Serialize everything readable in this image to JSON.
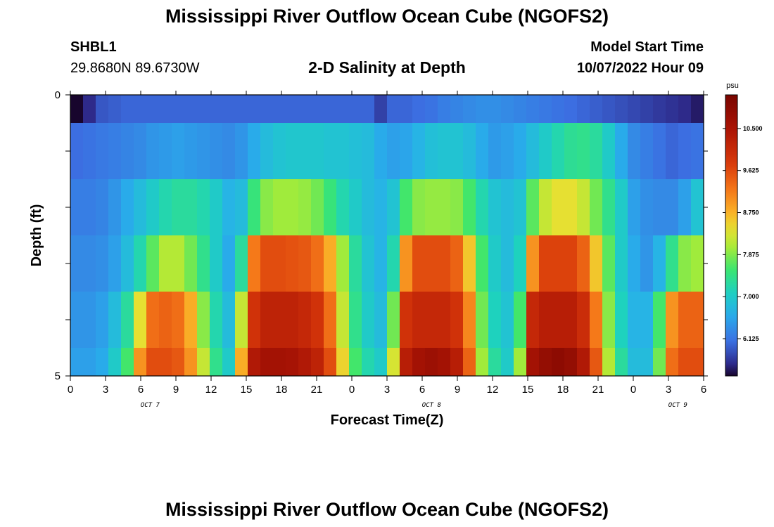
{
  "header": {
    "title": "Mississippi River Outflow Ocean Cube (NGOFS2)",
    "station_id": "SHBL1",
    "coordinates": "29.8680N  89.6730W",
    "subtitle": "2-D Salinity at Depth",
    "model_start_label": "Model Start Time",
    "model_start_value": "10/07/2022 Hour 09"
  },
  "footer": {
    "title": "Mississippi River Outflow Ocean Cube (NGOFS2)"
  },
  "chart_data": {
    "type": "heatmap",
    "xlabel": "Forecast Time(Z)",
    "ylabel": "Depth (ft)",
    "y_ticks": [
      "0",
      "5"
    ],
    "x_tick_labels": [
      "0",
      "3",
      "6",
      "9",
      "12",
      "15",
      "18",
      "21",
      "0",
      "3",
      "6",
      "9",
      "12",
      "15",
      "18",
      "21",
      "0",
      "3",
      "6"
    ],
    "date_labels": [
      {
        "text": "OCT 7",
        "hour": 6.8
      },
      {
        "text": "OCT 8",
        "hour": 30.8
      },
      {
        "text": "OCT 9",
        "hour": 51.8
      }
    ],
    "x_range_hours": [
      0,
      54
    ],
    "y_range_ft": [
      0,
      5
    ],
    "colorbar": {
      "unit": "psu",
      "min": 5.35,
      "max": 11.2,
      "tick_values": [
        10.5,
        9.625,
        8.75,
        7.875,
        7.0,
        6.125
      ],
      "tick_labels": [
        "10.500",
        "9.625",
        "8.750",
        "7.875",
        "7.000",
        "6.125"
      ]
    },
    "depth_layers": [
      {
        "depth_range": [
          0,
          0.5
        ],
        "values": [
          5.3,
          5.6,
          5.9,
          5.95,
          6.0,
          6.0,
          6.0,
          6.0,
          6.0,
          6.0,
          6.0,
          6.0,
          6.0,
          6.0,
          6.0,
          6.0,
          6.0,
          6.0,
          6.0,
          6.0,
          6.0,
          6.0,
          6.0,
          6.0,
          5.75,
          6.0,
          6.0,
          6.05,
          6.1,
          6.2,
          6.25,
          6.3,
          6.35,
          6.35,
          6.3,
          6.25,
          6.2,
          6.15,
          6.1,
          6.05,
          6.0,
          5.95,
          5.9,
          5.85,
          5.8,
          5.75,
          5.7,
          5.65,
          5.6,
          5.5
        ]
      },
      {
        "depth_range": [
          0.5,
          1.5
        ],
        "values": [
          6.05,
          6.1,
          6.15,
          6.2,
          6.25,
          6.3,
          6.4,
          6.45,
          6.5,
          6.45,
          6.4,
          6.35,
          6.3,
          6.4,
          6.6,
          6.8,
          6.9,
          6.95,
          6.95,
          6.95,
          6.9,
          6.9,
          6.85,
          6.8,
          6.6,
          6.5,
          6.55,
          6.7,
          6.85,
          6.9,
          6.9,
          6.8,
          6.6,
          6.45,
          6.5,
          6.6,
          6.8,
          7.0,
          7.2,
          7.35,
          7.4,
          7.3,
          7.0,
          6.6,
          6.3,
          6.2,
          6.1,
          6.0,
          6.05,
          6.1
        ]
      },
      {
        "depth_range": [
          1.5,
          2.5
        ],
        "values": [
          6.2,
          6.2,
          6.25,
          6.4,
          6.6,
          6.8,
          7.0,
          7.2,
          7.3,
          7.3,
          7.2,
          7.0,
          6.7,
          6.8,
          7.5,
          7.9,
          8.0,
          8.0,
          7.95,
          7.8,
          7.5,
          7.2,
          7.0,
          6.8,
          6.7,
          6.9,
          7.6,
          7.9,
          7.95,
          7.95,
          7.9,
          7.6,
          7.2,
          6.9,
          6.8,
          6.9,
          7.7,
          8.2,
          8.4,
          8.4,
          8.2,
          7.8,
          7.4,
          7.0,
          6.5,
          6.35,
          6.3,
          6.3,
          6.5,
          6.9
        ]
      },
      {
        "depth_range": [
          2.5,
          3.5
        ],
        "values": [
          6.3,
          6.3,
          6.35,
          6.5,
          6.8,
          7.2,
          7.7,
          8.1,
          8.1,
          7.8,
          7.4,
          7.0,
          6.6,
          7.3,
          9.2,
          9.6,
          9.6,
          9.55,
          9.5,
          9.3,
          8.8,
          8.0,
          7.3,
          6.9,
          6.7,
          7.2,
          9.0,
          9.6,
          9.6,
          9.6,
          9.4,
          8.6,
          7.6,
          7.0,
          6.8,
          7.1,
          9.0,
          9.7,
          9.7,
          9.7,
          9.4,
          8.6,
          7.7,
          7.0,
          6.6,
          6.4,
          6.7,
          7.4,
          7.9,
          8.0
        ]
      },
      {
        "depth_range": [
          3.5,
          4.5
        ],
        "values": [
          6.4,
          6.4,
          6.5,
          6.8,
          7.3,
          8.4,
          9.3,
          9.4,
          9.3,
          8.8,
          7.9,
          7.2,
          6.8,
          8.2,
          9.9,
          10.2,
          10.2,
          10.2,
          10.1,
          9.9,
          9.3,
          8.2,
          7.4,
          7.0,
          6.8,
          7.8,
          9.9,
          10.1,
          10.1,
          10.1,
          9.9,
          9.1,
          7.8,
          7.1,
          6.9,
          7.6,
          10.1,
          10.3,
          10.3,
          10.3,
          10.0,
          9.2,
          7.9,
          7.1,
          6.7,
          6.7,
          7.6,
          9.0,
          9.4,
          9.4
        ]
      },
      {
        "depth_range": [
          4.5,
          5.0
        ],
        "values": [
          6.5,
          6.5,
          6.6,
          7.0,
          7.6,
          9.0,
          9.6,
          9.6,
          9.5,
          9.0,
          8.2,
          7.4,
          7.0,
          8.8,
          10.4,
          10.6,
          10.6,
          10.55,
          10.4,
          10.2,
          9.6,
          8.5,
          7.6,
          7.2,
          7.0,
          8.3,
          10.3,
          10.6,
          10.7,
          10.6,
          10.3,
          9.4,
          8.0,
          7.3,
          7.0,
          8.0,
          10.6,
          10.8,
          10.9,
          10.8,
          10.4,
          9.5,
          8.1,
          7.3,
          6.8,
          6.8,
          7.8,
          9.3,
          9.6,
          9.6
        ]
      }
    ]
  }
}
